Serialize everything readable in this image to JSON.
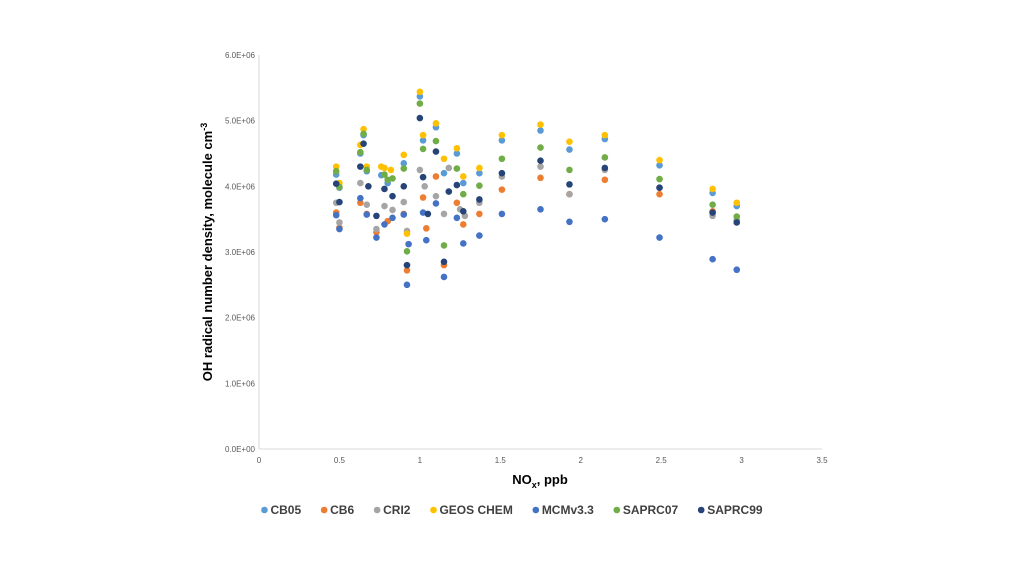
{
  "chart_data": {
    "type": "scatter",
    "title": "",
    "xlabel_main": "NO",
    "xlabel_sub": "x",
    "xlabel_rest": ", ppb",
    "ylabel_main": "OH radical number density, molecule cm",
    "ylabel_sup": "-3",
    "xlim": [
      0,
      3.5
    ],
    "ylim": [
      0,
      6000000
    ],
    "x_ticks": [
      {
        "value": 0,
        "label": "0"
      },
      {
        "value": 0.5,
        "label": "0.5"
      },
      {
        "value": 1,
        "label": "1"
      },
      {
        "value": 1.5,
        "label": "1.5"
      },
      {
        "value": 2,
        "label": "2"
      },
      {
        "value": 2.5,
        "label": "2.5"
      },
      {
        "value": 3,
        "label": "3"
      },
      {
        "value": 3.5,
        "label": "3.5"
      }
    ],
    "y_ticks": [
      {
        "value": 0,
        "label": "0.0E+00"
      },
      {
        "value": 1000000,
        "label": "1.0E+06"
      },
      {
        "value": 2000000,
        "label": "2.0E+06"
      },
      {
        "value": 3000000,
        "label": "3.0E+06"
      },
      {
        "value": 4000000,
        "label": "4.0E+06"
      },
      {
        "value": 5000000,
        "label": "5.0E+06"
      },
      {
        "value": 6000000,
        "label": "6.0E+06"
      }
    ],
    "grid": false,
    "legend_position": "bottom",
    "series": [
      {
        "name": "CB05",
        "color": "#5B9BD5",
        "points": [
          [
            0.48,
            4180000
          ],
          [
            0.5,
            3980000
          ],
          [
            0.63,
            4500000
          ],
          [
            0.65,
            4780000
          ],
          [
            0.67,
            4230000
          ],
          [
            0.76,
            4170000
          ],
          [
            0.8,
            4050000
          ],
          [
            0.9,
            4350000
          ],
          [
            1.0,
            5370000
          ],
          [
            1.02,
            4700000
          ],
          [
            1.1,
            4900000
          ],
          [
            1.15,
            4200000
          ],
          [
            1.23,
            4500000
          ],
          [
            1.27,
            4050000
          ],
          [
            1.37,
            4200000
          ],
          [
            1.51,
            4700000
          ],
          [
            1.75,
            4850000
          ],
          [
            1.93,
            4560000
          ],
          [
            2.15,
            4720000
          ],
          [
            2.49,
            4320000
          ],
          [
            2.82,
            3900000
          ],
          [
            2.97,
            3700000
          ]
        ]
      },
      {
        "name": "CB6",
        "color": "#ED7D31",
        "points": [
          [
            0.48,
            3600000
          ],
          [
            0.5,
            3370000
          ],
          [
            0.63,
            3750000
          ],
          [
            0.67,
            3580000
          ],
          [
            0.73,
            3300000
          ],
          [
            0.8,
            3470000
          ],
          [
            0.9,
            3580000
          ],
          [
            0.92,
            2720000
          ],
          [
            1.02,
            3830000
          ],
          [
            1.04,
            3360000
          ],
          [
            1.1,
            4150000
          ],
          [
            1.15,
            2800000
          ],
          [
            1.23,
            3750000
          ],
          [
            1.27,
            3420000
          ],
          [
            1.37,
            3580000
          ],
          [
            1.51,
            3950000
          ],
          [
            1.75,
            4130000
          ],
          [
            1.93,
            3880000
          ],
          [
            2.15,
            4100000
          ],
          [
            2.49,
            3880000
          ],
          [
            2.82,
            3620000
          ],
          [
            2.97,
            3480000
          ]
        ]
      },
      {
        "name": "CRI2",
        "color": "#A5A5A5",
        "points": [
          [
            0.48,
            3750000
          ],
          [
            0.5,
            3450000
          ],
          [
            0.63,
            4050000
          ],
          [
            0.67,
            3720000
          ],
          [
            0.73,
            3350000
          ],
          [
            0.78,
            3700000
          ],
          [
            0.83,
            3640000
          ],
          [
            0.9,
            3760000
          ],
          [
            0.92,
            3320000
          ],
          [
            1.0,
            4250000
          ],
          [
            1.03,
            4000000
          ],
          [
            1.1,
            3850000
          ],
          [
            1.15,
            3580000
          ],
          [
            1.18,
            4280000
          ],
          [
            1.25,
            3650000
          ],
          [
            1.28,
            3550000
          ],
          [
            1.37,
            3750000
          ],
          [
            1.51,
            4150000
          ],
          [
            1.75,
            4300000
          ],
          [
            1.93,
            3880000
          ],
          [
            2.15,
            4250000
          ],
          [
            2.49,
            3980000
          ],
          [
            2.82,
            3550000
          ],
          [
            2.97,
            3490000
          ]
        ]
      },
      {
        "name": "GEOS CHEM",
        "color": "#FFC000",
        "points": [
          [
            0.48,
            4300000
          ],
          [
            0.5,
            4050000
          ],
          [
            0.63,
            4630000
          ],
          [
            0.65,
            4870000
          ],
          [
            0.67,
            4300000
          ],
          [
            0.76,
            4300000
          ],
          [
            0.78,
            4280000
          ],
          [
            0.82,
            4250000
          ],
          [
            0.9,
            4480000
          ],
          [
            0.92,
            3280000
          ],
          [
            1.0,
            5440000
          ],
          [
            1.02,
            4780000
          ],
          [
            1.1,
            4960000
          ],
          [
            1.15,
            4420000
          ],
          [
            1.23,
            4580000
          ],
          [
            1.27,
            4150000
          ],
          [
            1.37,
            4280000
          ],
          [
            1.51,
            4780000
          ],
          [
            1.75,
            4940000
          ],
          [
            1.93,
            4680000
          ],
          [
            2.15,
            4780000
          ],
          [
            2.49,
            4400000
          ],
          [
            2.82,
            3960000
          ],
          [
            2.97,
            3750000
          ]
        ]
      },
      {
        "name": "MCMv3.3",
        "color": "#4472C4",
        "points": [
          [
            0.48,
            3560000
          ],
          [
            0.5,
            3350000
          ],
          [
            0.63,
            3820000
          ],
          [
            0.67,
            3570000
          ],
          [
            0.73,
            3220000
          ],
          [
            0.78,
            3420000
          ],
          [
            0.83,
            3520000
          ],
          [
            0.9,
            3570000
          ],
          [
            0.92,
            2500000
          ],
          [
            0.93,
            3120000
          ],
          [
            1.02,
            3600000
          ],
          [
            1.04,
            3180000
          ],
          [
            1.1,
            3740000
          ],
          [
            1.15,
            2620000
          ],
          [
            1.23,
            3520000
          ],
          [
            1.27,
            3130000
          ],
          [
            1.37,
            3250000
          ],
          [
            1.51,
            3580000
          ],
          [
            1.75,
            3650000
          ],
          [
            1.93,
            3460000
          ],
          [
            2.15,
            3500000
          ],
          [
            2.49,
            3220000
          ],
          [
            2.82,
            2890000
          ],
          [
            2.97,
            2730000
          ]
        ]
      },
      {
        "name": "SAPRC07",
        "color": "#70AD47",
        "points": [
          [
            0.48,
            4230000
          ],
          [
            0.5,
            3990000
          ],
          [
            0.63,
            4520000
          ],
          [
            0.65,
            4800000
          ],
          [
            0.67,
            4250000
          ],
          [
            0.78,
            4180000
          ],
          [
            0.8,
            4100000
          ],
          [
            0.83,
            4120000
          ],
          [
            0.9,
            4270000
          ],
          [
            0.92,
            3010000
          ],
          [
            1.0,
            5260000
          ],
          [
            1.02,
            4570000
          ],
          [
            1.1,
            4690000
          ],
          [
            1.15,
            3100000
          ],
          [
            1.23,
            4270000
          ],
          [
            1.27,
            3880000
          ],
          [
            1.37,
            4010000
          ],
          [
            1.51,
            4420000
          ],
          [
            1.75,
            4590000
          ],
          [
            1.93,
            4250000
          ],
          [
            2.15,
            4440000
          ],
          [
            2.49,
            4110000
          ],
          [
            2.82,
            3720000
          ],
          [
            2.97,
            3540000
          ]
        ]
      },
      {
        "name": "SAPRC99",
        "color": "#264478",
        "points": [
          [
            0.48,
            4040000
          ],
          [
            0.5,
            3760000
          ],
          [
            0.63,
            4300000
          ],
          [
            0.65,
            4650000
          ],
          [
            0.68,
            4000000
          ],
          [
            0.73,
            3550000
          ],
          [
            0.78,
            3960000
          ],
          [
            0.83,
            3850000
          ],
          [
            0.9,
            4000000
          ],
          [
            0.92,
            2800000
          ],
          [
            1.0,
            5040000
          ],
          [
            1.02,
            4140000
          ],
          [
            1.05,
            3580000
          ],
          [
            1.1,
            4530000
          ],
          [
            1.15,
            2850000
          ],
          [
            1.18,
            3920000
          ],
          [
            1.23,
            4020000
          ],
          [
            1.27,
            3620000
          ],
          [
            1.37,
            3800000
          ],
          [
            1.51,
            4200000
          ],
          [
            1.75,
            4390000
          ],
          [
            1.93,
            4030000
          ],
          [
            2.15,
            4280000
          ],
          [
            2.49,
            3980000
          ],
          [
            2.82,
            3600000
          ],
          [
            2.97,
            3450000
          ]
        ]
      }
    ]
  }
}
